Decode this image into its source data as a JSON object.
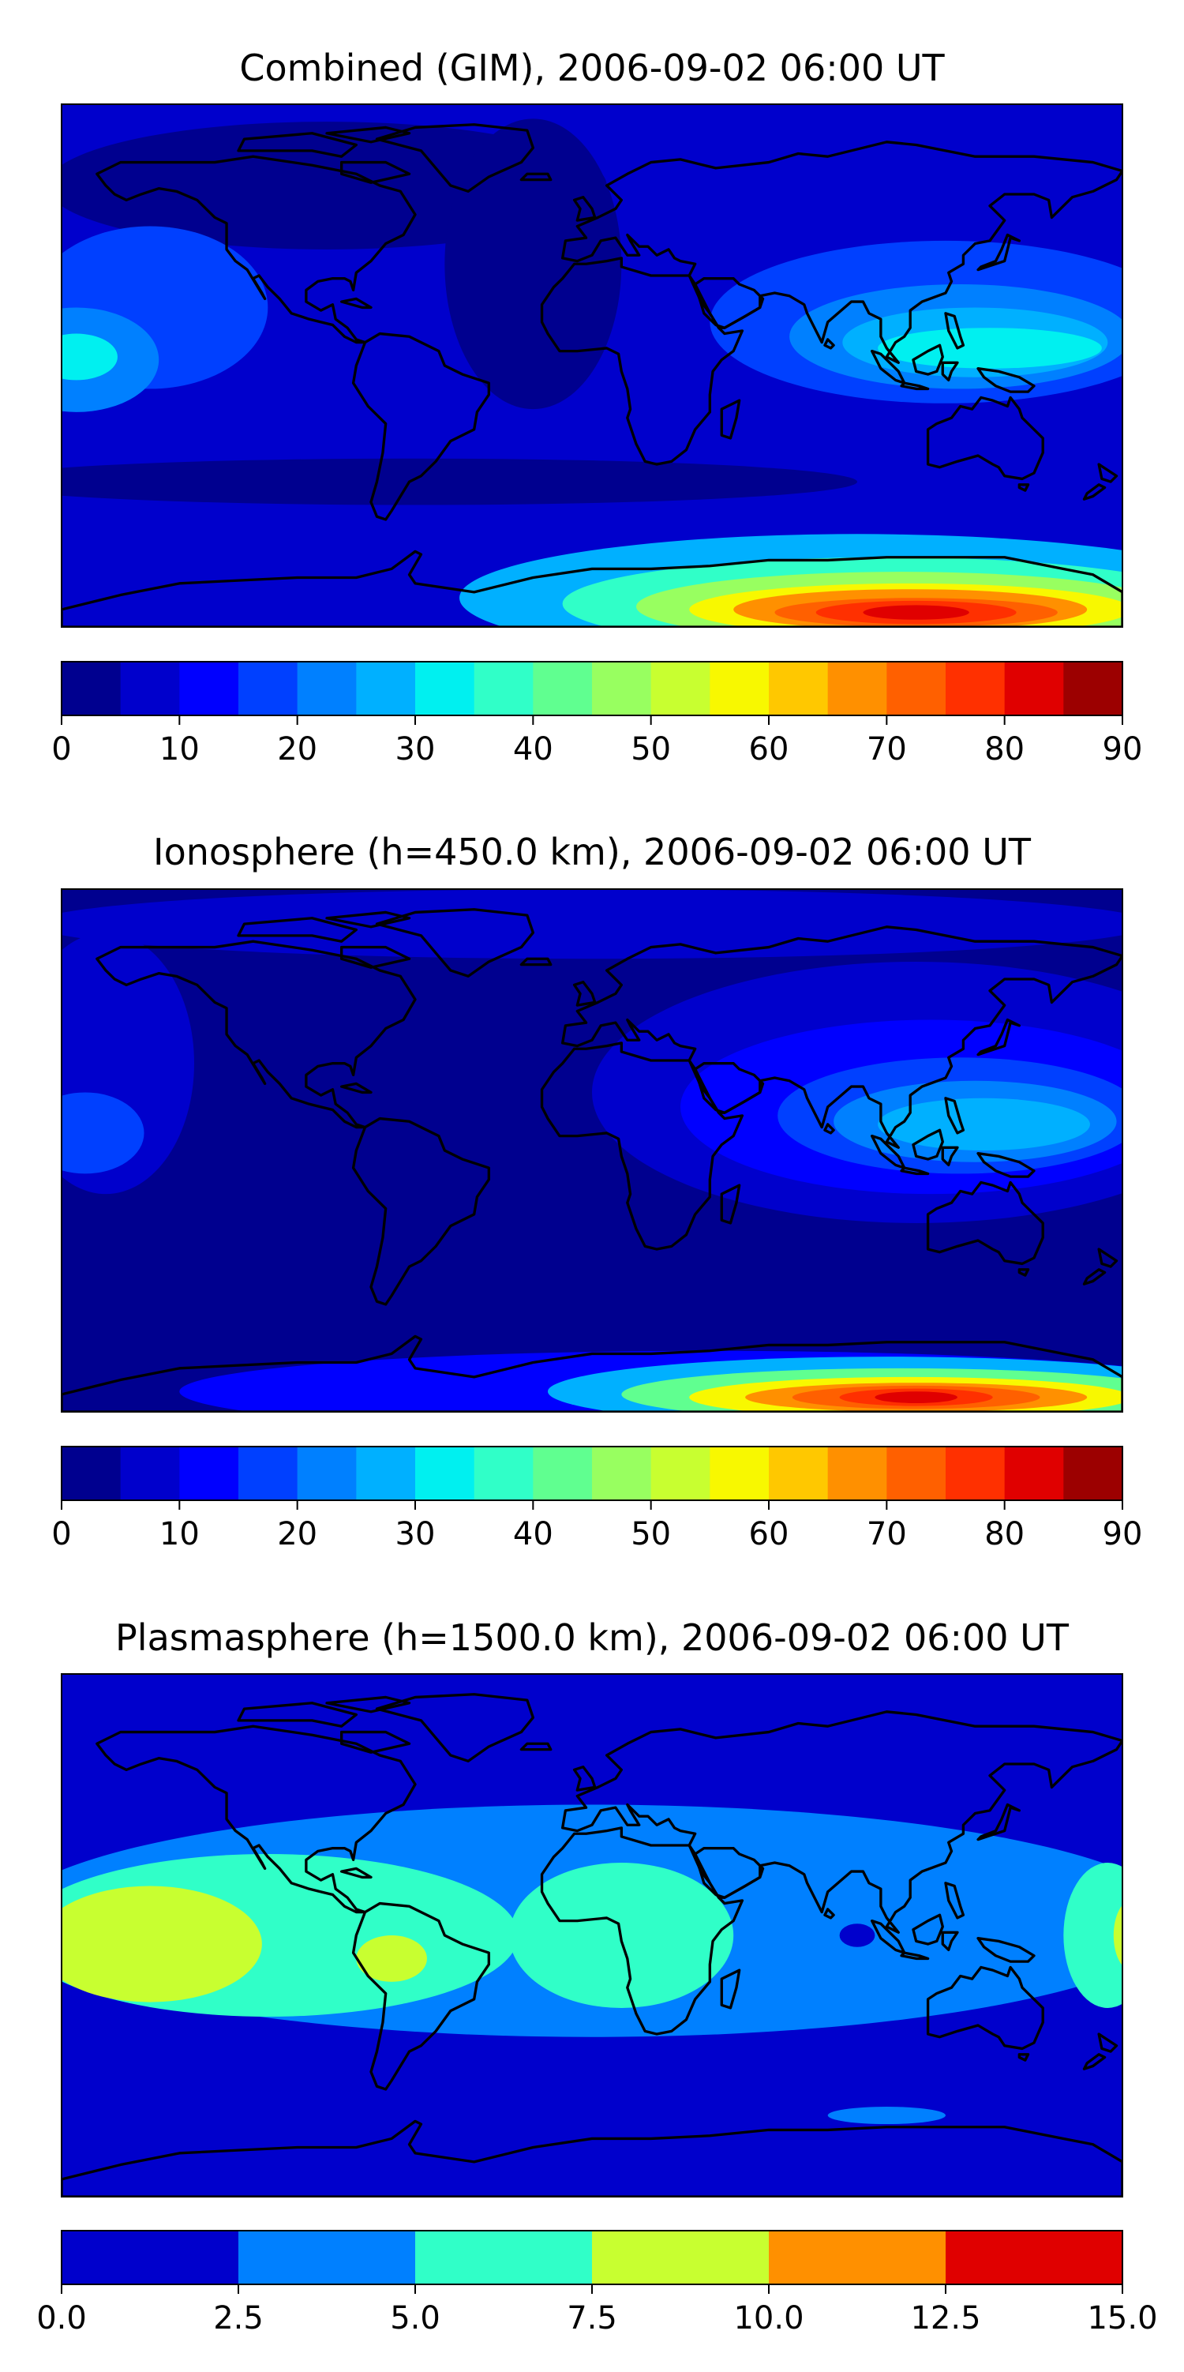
{
  "panels": [
    {
      "title": "Combined (GIM), 2006-09-02 06:00 UT",
      "colorbar": {
        "min": 0,
        "max": 90,
        "ticks": [
          "0",
          "10",
          "20",
          "30",
          "40",
          "50",
          "60",
          "70",
          "80",
          "90"
        ],
        "colors": [
          "#00008f",
          "#0000cc",
          "#0000ff",
          "#0040ff",
          "#0080ff",
          "#00b0ff",
          "#00f0f0",
          "#30ffc8",
          "#60ff90",
          "#98ff60",
          "#c8ff30",
          "#f8f800",
          "#ffc800",
          "#ff9000",
          "#ff6000",
          "#ff3000",
          "#e00000",
          "#9c0000"
        ]
      },
      "field": {
        "background": "#0000cc",
        "blobs": [
          {
            "lon": -90,
            "lat": 62,
            "rx": 95,
            "ry": 22,
            "level": 0
          },
          {
            "lon": -20,
            "lat": 35,
            "rx": 30,
            "ry": 50,
            "level": 0
          },
          {
            "lon": -60,
            "lat": -40,
            "rx": 150,
            "ry": 8,
            "level": 0
          },
          {
            "lon": -150,
            "lat": 20,
            "rx": 40,
            "ry": 28,
            "level": 3
          },
          {
            "lon": -175,
            "lat": 2,
            "rx": 28,
            "ry": 18,
            "level": 4
          },
          {
            "lon": -175,
            "lat": 3,
            "rx": 14,
            "ry": 8,
            "level": 6
          },
          {
            "lon": 120,
            "lat": 15,
            "rx": 80,
            "ry": 28,
            "level": 3
          },
          {
            "lon": 125,
            "lat": 10,
            "rx": 58,
            "ry": 18,
            "level": 4
          },
          {
            "lon": 130,
            "lat": 8,
            "rx": 45,
            "ry": 12,
            "level": 5
          },
          {
            "lon": 135,
            "lat": 6,
            "rx": 38,
            "ry": 7,
            "level": 6
          },
          {
            "lon": 90,
            "lat": -80,
            "rx": 135,
            "ry": 22,
            "level": 5
          },
          {
            "lon": 100,
            "lat": -82,
            "rx": 110,
            "ry": 16,
            "level": 7
          },
          {
            "lon": 105,
            "lat": -83,
            "rx": 90,
            "ry": 12,
            "level": 9
          },
          {
            "lon": 108,
            "lat": -84,
            "rx": 75,
            "ry": 9,
            "level": 11
          },
          {
            "lon": 108,
            "lat": -84,
            "rx": 60,
            "ry": 7,
            "level": 13
          },
          {
            "lon": 110,
            "lat": -85,
            "rx": 48,
            "ry": 5,
            "level": 14
          },
          {
            "lon": 110,
            "lat": -85,
            "rx": 34,
            "ry": 4,
            "level": 15
          },
          {
            "lon": 110,
            "lat": -85,
            "rx": 18,
            "ry": 2.5,
            "level": 16
          }
        ]
      }
    },
    {
      "title": "Ionosphere  (h=450.0 km), 2006-09-02 06:00 UT",
      "colorbar": {
        "min": 0,
        "max": 90,
        "ticks": [
          "0",
          "10",
          "20",
          "30",
          "40",
          "50",
          "60",
          "70",
          "80",
          "90"
        ],
        "colors": [
          "#00008f",
          "#0000cc",
          "#0000ff",
          "#0040ff",
          "#0080ff",
          "#00b0ff",
          "#00f0f0",
          "#30ffc8",
          "#60ff90",
          "#98ff60",
          "#c8ff30",
          "#f8f800",
          "#ffc800",
          "#ff9000",
          "#ff6000",
          "#ff3000",
          "#e00000",
          "#9c0000"
        ]
      },
      "field": {
        "background": "#00008f",
        "blobs": [
          {
            "lon": 0,
            "lat": 78,
            "rx": 190,
            "ry": 12,
            "level": 1
          },
          {
            "lon": -165,
            "lat": 30,
            "rx": 30,
            "ry": 45,
            "level": 1
          },
          {
            "lon": 110,
            "lat": 20,
            "rx": 110,
            "ry": 45,
            "level": 1
          },
          {
            "lon": 115,
            "lat": 15,
            "rx": 85,
            "ry": 30,
            "level": 2
          },
          {
            "lon": 125,
            "lat": 12,
            "rx": 62,
            "ry": 20,
            "level": 3
          },
          {
            "lon": 130,
            "lat": 10,
            "rx": 48,
            "ry": 14,
            "level": 4
          },
          {
            "lon": 133,
            "lat": 9,
            "rx": 36,
            "ry": 9,
            "level": 5
          },
          {
            "lon": -172,
            "lat": 6,
            "rx": 20,
            "ry": 14,
            "level": 3
          },
          {
            "lon": 40,
            "lat": -83,
            "rx": 180,
            "ry": 14,
            "level": 2
          },
          {
            "lon": 100,
            "lat": -83,
            "rx": 115,
            "ry": 12,
            "level": 5
          },
          {
            "lon": 105,
            "lat": -84,
            "rx": 95,
            "ry": 9,
            "level": 8
          },
          {
            "lon": 108,
            "lat": -85,
            "rx": 75,
            "ry": 7,
            "level": 11
          },
          {
            "lon": 110,
            "lat": -85,
            "rx": 58,
            "ry": 5,
            "level": 13
          },
          {
            "lon": 110,
            "lat": -85,
            "rx": 42,
            "ry": 4,
            "level": 14
          },
          {
            "lon": 110,
            "lat": -85,
            "rx": 26,
            "ry": 3,
            "level": 15
          },
          {
            "lon": 110,
            "lat": -85,
            "rx": 14,
            "ry": 2,
            "level": 16
          }
        ]
      }
    },
    {
      "title": "Plasmasphere (h=1500.0 km), 2006-09-02 06:00 UT",
      "colorbar": {
        "min": 0.0,
        "max": 15.0,
        "ticks": [
          "0.0",
          "2.5",
          "5.0",
          "7.5",
          "10.0",
          "12.5",
          "15.0"
        ],
        "colors": [
          "#0000cc",
          "#0080ff",
          "#30ffc8",
          "#c8ff30",
          "#ff9000",
          "#e00000"
        ]
      },
      "field": {
        "background": "#0000cc",
        "blobs": [
          {
            "lon": 0,
            "lat": 5,
            "rx": 200,
            "ry": 40,
            "level": 1
          },
          {
            "lon": -110,
            "lat": 0,
            "rx": 85,
            "ry": 28,
            "level": 2
          },
          {
            "lon": 10,
            "lat": 0,
            "rx": 38,
            "ry": 25,
            "level": 2
          },
          {
            "lon": 175,
            "lat": 0,
            "rx": 15,
            "ry": 25,
            "level": 2
          },
          {
            "lon": -150,
            "lat": -3,
            "rx": 38,
            "ry": 20,
            "level": 3
          },
          {
            "lon": -68,
            "lat": -8,
            "rx": 12,
            "ry": 8,
            "level": 3
          },
          {
            "lon": 183,
            "lat": 0,
            "rx": 6,
            "ry": 12,
            "level": 3
          },
          {
            "lon": 100,
            "lat": -62,
            "rx": 20,
            "ry": 3,
            "level": 1
          },
          {
            "lon": 90,
            "lat": 0,
            "rx": 6,
            "ry": 4,
            "level": 0
          }
        ]
      }
    }
  ]
}
